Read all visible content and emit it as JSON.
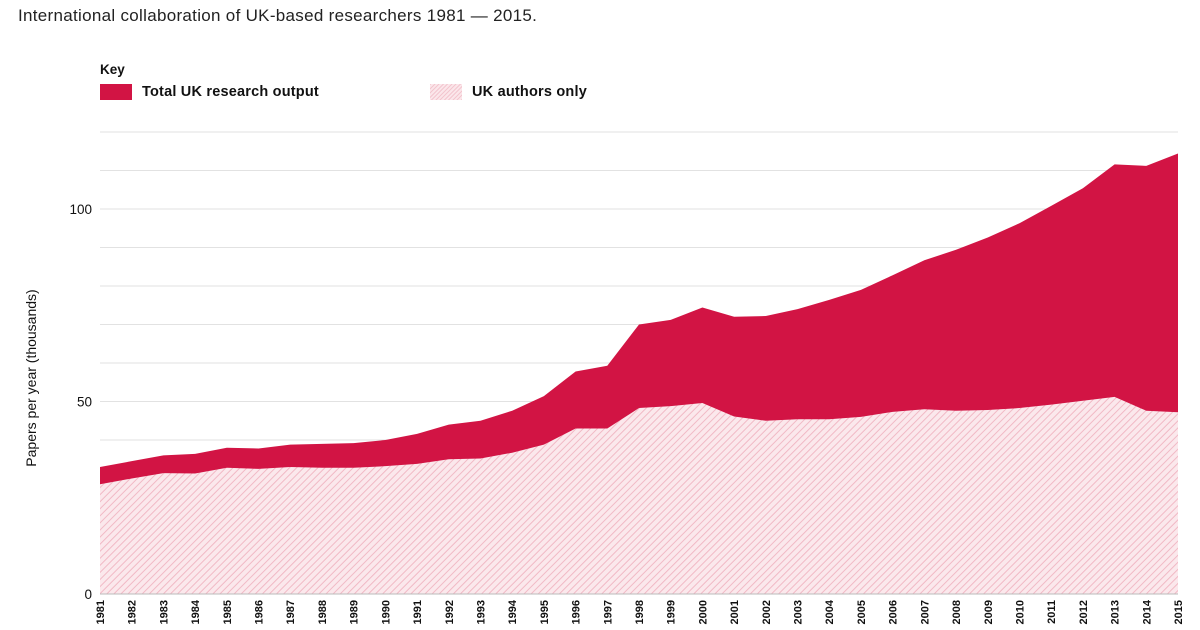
{
  "title": "International collaboration of UK-based researchers 1981 — 2015.",
  "legend": {
    "heading": "Key",
    "items": [
      {
        "label": "Total UK research output",
        "color": "#d21444",
        "pattern": "solid"
      },
      {
        "label": "UK authors only",
        "color": "#f3c6cf",
        "pattern": "hatched"
      }
    ]
  },
  "chart_data": {
    "type": "area",
    "title": "International collaboration of UK-based researchers 1981 — 2015.",
    "xlabel": "",
    "ylabel": "Papers per year (thousands)",
    "ylim": [
      0,
      120
    ],
    "y_ticks": [
      0,
      50,
      100
    ],
    "grid": true,
    "legend_position": "top-left",
    "categories": [
      "1981",
      "1982",
      "1983",
      "1984",
      "1985",
      "1986",
      "1987",
      "1988",
      "1989",
      "1990",
      "1991",
      "1992",
      "1993",
      "1994",
      "1995",
      "1996",
      "1997",
      "1998",
      "1999",
      "2000",
      "2001",
      "2002",
      "2003",
      "2004",
      "2005",
      "2006",
      "2007",
      "2008",
      "2009",
      "2010",
      "2011",
      "2012",
      "2013",
      "2014",
      "2015"
    ],
    "series": [
      {
        "name": "Total UK research output",
        "color": "#d21444",
        "values": [
          33,
          34.5,
          36,
          36.4,
          38,
          37.8,
          38.8,
          39,
          39.2,
          40,
          41.6,
          44,
          45,
          47.6,
          51.4,
          57.8,
          59.3,
          70,
          71.2,
          74.4,
          72,
          72.2,
          74,
          76.4,
          79,
          82.8,
          86.7,
          89.4,
          92.6,
          96.3,
          100.8,
          105.4,
          111.6,
          111.2,
          114.4
        ]
      },
      {
        "name": "UK authors only",
        "color": "#f3c6cf",
        "values": [
          28.5,
          30,
          31.4,
          31.3,
          32.8,
          32.5,
          33,
          32.8,
          32.8,
          33.2,
          33.8,
          35,
          35.2,
          36.7,
          38.8,
          43,
          43,
          48.3,
          48.8,
          49.6,
          46.1,
          45,
          45.4,
          45.4,
          46,
          47.3,
          48,
          47.6,
          47.8,
          48.3,
          49.2,
          50.2,
          51.2,
          47.6,
          47.2
        ]
      }
    ]
  }
}
